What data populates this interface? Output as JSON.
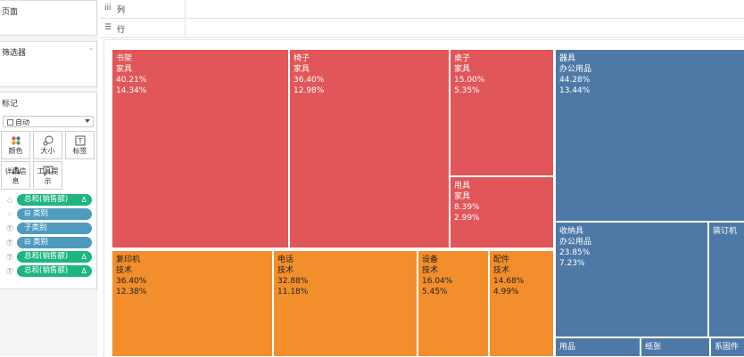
{
  "sidebar": {
    "pages_title": "页面",
    "filters_title": "筛选器",
    "marks_title": "标记",
    "mark_type": "自动",
    "mark_buttons": [
      {
        "label": "颜色",
        "icon": "color-dots-icon"
      },
      {
        "label": "大小",
        "icon": "size-icon"
      },
      {
        "label": "标签",
        "icon": "label-icon"
      },
      {
        "label": "详细信息",
        "icon": "detail-icon"
      },
      {
        "label": "工具提示",
        "icon": "tooltip-icon"
      }
    ],
    "mark_pills": [
      {
        "icon": "size-icon",
        "label": "总和(销售额)",
        "color": "#1eb57f",
        "delta": "Δ"
      },
      {
        "icon": "color-dots-icon",
        "label": "⊟ 类别",
        "color": "#4f9bbf",
        "delta": ""
      },
      {
        "icon": "label-icon",
        "label": "子类别",
        "color": "#4f9bbf",
        "delta": ""
      },
      {
        "icon": "label-icon",
        "label": "⊟ 类别",
        "color": "#4f9bbf",
        "delta": ""
      },
      {
        "icon": "label-icon",
        "label": "总和(销售额)",
        "color": "#1eb57f",
        "delta": "Δ"
      },
      {
        "icon": "label-icon",
        "label": "总和(销售额)",
        "color": "#1eb57f",
        "delta": "Δ"
      }
    ]
  },
  "shelves": {
    "columns_icon": "iii",
    "columns_label": "列",
    "rows_icon": "☰",
    "rows_label": "行"
  },
  "colors": {
    "furniture": "#e15759",
    "technology": "#f28e2b",
    "office": "#4e79a7"
  },
  "chart_data": {
    "type": "treemap",
    "tiles": [
      {
        "subcategory": "书架",
        "category": "家具",
        "pct_in_category": "40.21%",
        "pct_of_total": "14.34%",
        "group": "furniture"
      },
      {
        "subcategory": "椅子",
        "category": "家具",
        "pct_in_category": "36.40%",
        "pct_of_total": "12.98%",
        "group": "furniture"
      },
      {
        "subcategory": "桌子",
        "category": "家具",
        "pct_in_category": "15.00%",
        "pct_of_total": "5.35%",
        "group": "furniture"
      },
      {
        "subcategory": "用具",
        "category": "家具",
        "pct_in_category": "8.39%",
        "pct_of_total": "2.99%",
        "group": "furniture"
      },
      {
        "subcategory": "复印机",
        "category": "技术",
        "pct_in_category": "36.40%",
        "pct_of_total": "12.38%",
        "group": "technology"
      },
      {
        "subcategory": "电话",
        "category": "技术",
        "pct_in_category": "32.88%",
        "pct_of_total": "11.18%",
        "group": "technology"
      },
      {
        "subcategory": "设备",
        "category": "技术",
        "pct_in_category": "16.04%",
        "pct_of_total": "5.45%",
        "group": "technology"
      },
      {
        "subcategory": "配件",
        "category": "技术",
        "pct_in_category": "14.68%",
        "pct_of_total": "4.99%",
        "group": "technology"
      },
      {
        "subcategory": "器具",
        "category": "办公用品",
        "pct_in_category": "44.28%",
        "pct_of_total": "13.44%",
        "group": "office"
      },
      {
        "subcategory": "收纳具",
        "category": "办公用品",
        "pct_in_category": "23.85%",
        "pct_of_total": "7.23%",
        "group": "office"
      },
      {
        "subcategory": "装订机",
        "category": "",
        "pct_in_category": "",
        "pct_of_total": "",
        "group": "office"
      },
      {
        "subcategory": "用品",
        "category": "",
        "pct_in_category": "",
        "pct_of_total": "",
        "group": "office"
      },
      {
        "subcategory": "纸张",
        "category": "",
        "pct_in_category": "",
        "pct_of_total": "",
        "group": "office"
      },
      {
        "subcategory": "系固件",
        "category": "",
        "pct_in_category": "",
        "pct_of_total": "",
        "group": "office"
      }
    ]
  }
}
